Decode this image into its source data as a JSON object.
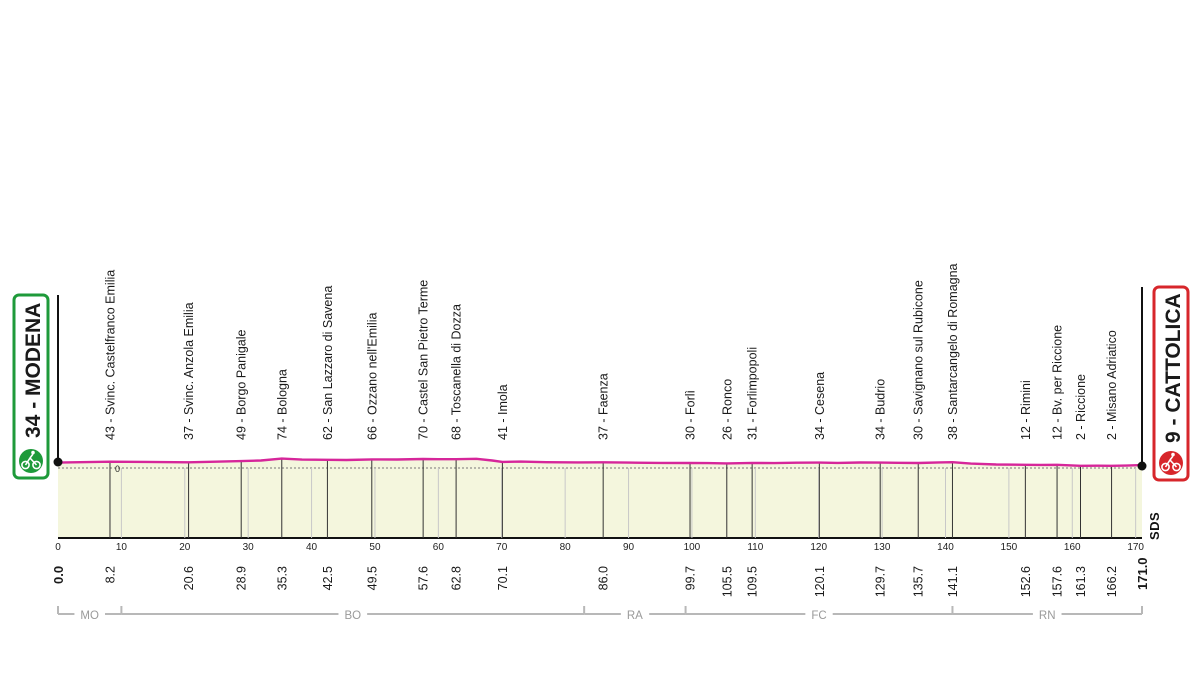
{
  "start": {
    "name": "34 - MODENA",
    "km_label": "0.0",
    "elevation": 34,
    "color": "#1e9a3a"
  },
  "finish": {
    "name": "9 - CATTOLICA",
    "km_label": "171.0",
    "elevation": 9,
    "color": "#d7262b"
  },
  "logo": "SDS",
  "colors": {
    "profile_line": "#d6269a",
    "profile_fill": "#f4f6dd",
    "province_bar": "#b8b8b8"
  },
  "chart_data": {
    "type": "area",
    "title": "",
    "xlabel": "",
    "ylabel": "",
    "xlim": [
      0,
      171
    ],
    "x_ticks": [
      0,
      10,
      20,
      30,
      40,
      50,
      60,
      70,
      80,
      90,
      100,
      110,
      120,
      130,
      140,
      150,
      160,
      170
    ],
    "zero_marker": "0",
    "profile": [
      {
        "km": 0,
        "ele": 34
      },
      {
        "km": 8.2,
        "ele": 43
      },
      {
        "km": 14,
        "ele": 41
      },
      {
        "km": 20.6,
        "ele": 37
      },
      {
        "km": 24,
        "ele": 42
      },
      {
        "km": 28.9,
        "ele": 49
      },
      {
        "km": 32,
        "ele": 55
      },
      {
        "km": 35.3,
        "ele": 74
      },
      {
        "km": 38.5,
        "ele": 64
      },
      {
        "km": 42.5,
        "ele": 62
      },
      {
        "km": 45.5,
        "ele": 60
      },
      {
        "km": 49.5,
        "ele": 66
      },
      {
        "km": 53.5,
        "ele": 65
      },
      {
        "km": 57.6,
        "ele": 70
      },
      {
        "km": 60,
        "ele": 68
      },
      {
        "km": 62.8,
        "ele": 68
      },
      {
        "km": 66,
        "ele": 72
      },
      {
        "km": 68.5,
        "ele": 55
      },
      {
        "km": 70.1,
        "ele": 41
      },
      {
        "km": 73,
        "ele": 44
      },
      {
        "km": 77,
        "ele": 38
      },
      {
        "km": 82,
        "ele": 36
      },
      {
        "km": 86,
        "ele": 37
      },
      {
        "km": 90,
        "ele": 34
      },
      {
        "km": 95,
        "ele": 31
      },
      {
        "km": 99.7,
        "ele": 30
      },
      {
        "km": 102.5,
        "ele": 29
      },
      {
        "km": 105.5,
        "ele": 26
      },
      {
        "km": 109.5,
        "ele": 31
      },
      {
        "km": 113,
        "ele": 29
      },
      {
        "km": 116.5,
        "ele": 33
      },
      {
        "km": 120.1,
        "ele": 34
      },
      {
        "km": 123,
        "ele": 31
      },
      {
        "km": 126.5,
        "ele": 35
      },
      {
        "km": 129.7,
        "ele": 34
      },
      {
        "km": 132.5,
        "ele": 32
      },
      {
        "km": 135.7,
        "ele": 30
      },
      {
        "km": 139,
        "ele": 36
      },
      {
        "km": 141.1,
        "ele": 38
      },
      {
        "km": 144,
        "ele": 24
      },
      {
        "km": 148,
        "ele": 15
      },
      {
        "km": 152.6,
        "ele": 12
      },
      {
        "km": 155,
        "ele": 11
      },
      {
        "km": 157.6,
        "ele": 12
      },
      {
        "km": 161.3,
        "ele": 2
      },
      {
        "km": 164,
        "ele": 3
      },
      {
        "km": 166.2,
        "ele": 2
      },
      {
        "km": 168.5,
        "ele": 4
      },
      {
        "km": 171,
        "ele": 9
      }
    ],
    "waypoints": [
      {
        "km": 8.2,
        "km_label": "8.2",
        "label": "43 - Svinc. Castelfranco Emilia"
      },
      {
        "km": 20.6,
        "km_label": "20.6",
        "label": "37 - Svinc. Anzola Emilia"
      },
      {
        "km": 28.9,
        "km_label": "28.9",
        "label": "49 - Borgo Panigale"
      },
      {
        "km": 35.3,
        "km_label": "35.3",
        "label": "74 - Bologna"
      },
      {
        "km": 42.5,
        "km_label": "42.5",
        "label": "62 - San Lazzaro di Savena"
      },
      {
        "km": 49.5,
        "km_label": "49.5",
        "label": "66 - Ozzano nell'Emilia"
      },
      {
        "km": 57.6,
        "km_label": "57.6",
        "label": "70 - Castel San Pietro Terme"
      },
      {
        "km": 62.8,
        "km_label": "62.8",
        "label": "68 - Toscanella di Dozza"
      },
      {
        "km": 70.1,
        "km_label": "70.1",
        "label": "41 - Imola"
      },
      {
        "km": 86.0,
        "km_label": "86.0",
        "label": "37 - Faenza"
      },
      {
        "km": 99.7,
        "km_label": "99.7",
        "label": "30 - Forlì"
      },
      {
        "km": 105.5,
        "km_label": "105.5",
        "label": "26 - Ronco"
      },
      {
        "km": 109.5,
        "km_label": "109.5",
        "label": "31 - Forlimpopoli"
      },
      {
        "km": 120.1,
        "km_label": "120.1",
        "label": "34 - Cesena"
      },
      {
        "km": 129.7,
        "km_label": "129.7",
        "label": "34 - Budrio"
      },
      {
        "km": 135.7,
        "km_label": "135.7",
        "label": "30 - Savignano sul Rubicone"
      },
      {
        "km": 141.1,
        "km_label": "141.1",
        "label": "38 - Santarcangelo di Romagna"
      },
      {
        "km": 152.6,
        "km_label": "152.6",
        "label": "12 - Rimini"
      },
      {
        "km": 157.6,
        "km_label": "157.6",
        "label": "12 - Bv. per Riccione"
      },
      {
        "km": 161.3,
        "km_label": "161.3",
        "label": "2 - Riccione"
      },
      {
        "km": 166.2,
        "km_label": "166.2",
        "label": "2 - Misano Adriatico"
      }
    ],
    "provinces": [
      {
        "code": "MO",
        "from_km": 0,
        "to_km": 10
      },
      {
        "code": "BO",
        "from_km": 10,
        "to_km": 83
      },
      {
        "code": "RA",
        "from_km": 83,
        "to_km": 99
      },
      {
        "code": "FC",
        "from_km": 99,
        "to_km": 141.1
      },
      {
        "code": "RN",
        "from_km": 141.1,
        "to_km": 171
      }
    ]
  }
}
